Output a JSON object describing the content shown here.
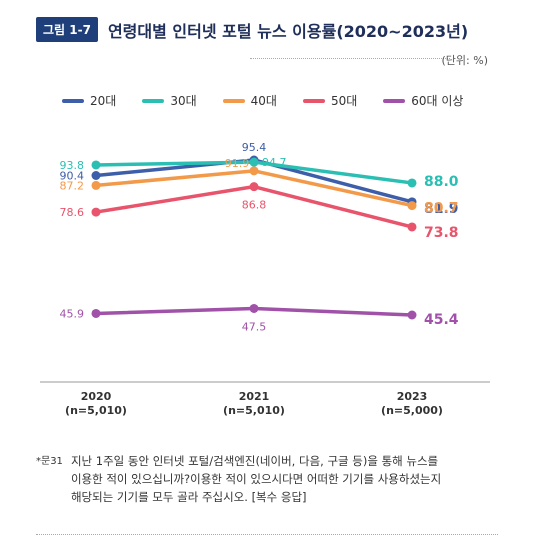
{
  "figure": {
    "badge": "그림 1-7",
    "title": "연령대별 인터넷 포털 뉴스 이용률(2020~2023년)",
    "unit": "(단위: %)"
  },
  "chart_data": {
    "type": "line",
    "categories": [
      "2020",
      "2021",
      "2023"
    ],
    "category_sublabels": [
      "(n=5,010)",
      "(n=5,010)",
      "(n=5,000)"
    ],
    "series": [
      {
        "name": "20대",
        "color": "#3d5ea8",
        "values": [
          90.4,
          95.4,
          81.9
        ]
      },
      {
        "name": "30대",
        "color": "#2bbfb3",
        "values": [
          93.8,
          94.7,
          88.0
        ]
      },
      {
        "name": "40대",
        "color": "#f29a4a",
        "values": [
          87.2,
          91.9,
          80.7
        ]
      },
      {
        "name": "50대",
        "color": "#e8546b",
        "values": [
          78.6,
          86.8,
          73.8
        ]
      },
      {
        "name": "60대 이상",
        "color": "#a052a8",
        "values": [
          45.9,
          47.5,
          45.4
        ]
      }
    ],
    "value_labels": [
      [
        "90.4",
        "95.4",
        "81.9"
      ],
      [
        "93.8",
        "94.7",
        "88.0"
      ],
      [
        "87.2",
        "91.9",
        "80.7"
      ],
      [
        "78.6",
        "86.8",
        "73.8"
      ],
      [
        "45.9",
        "47.5",
        "45.4"
      ]
    ]
  },
  "footnote": {
    "mark": "*문31",
    "lines": [
      "지난 1주일 동안 인터넷 포털/검색엔진(네이버, 다음, 구글 등)을 통해 뉴스를",
      "이용한 적이 있으십니까?이용한 적이 있으시다면 어떠한 기기를 사용하셨는지",
      "해당되는 기기를 모두 골라 주십시오. [복수 응답]"
    ]
  }
}
